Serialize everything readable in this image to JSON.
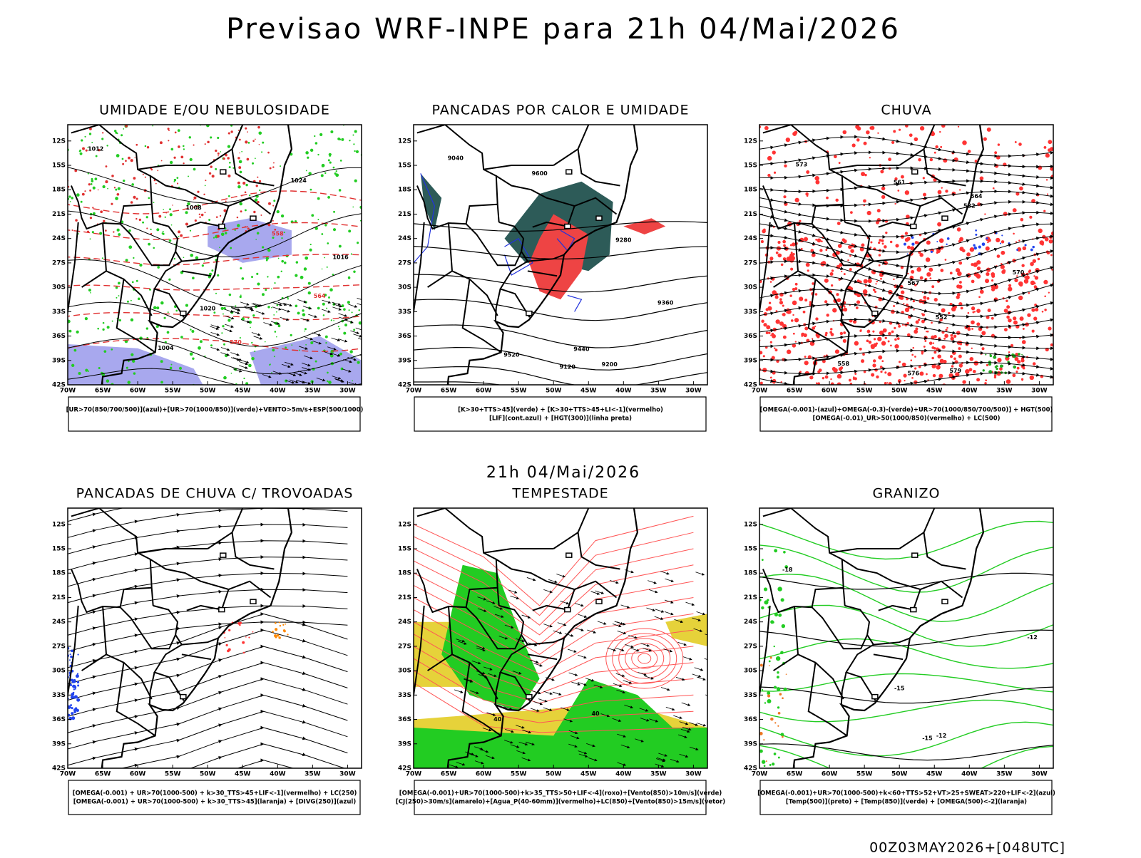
{
  "title": "Previsao WRF-INPE  para 21h 04/Mai/2026",
  "subtitle": "21h 04/Mai/2026",
  "footer": "00Z03MAY2026+[048UTC]",
  "lat_ticks": [
    "12S",
    "15S",
    "18S",
    "21S",
    "24S",
    "27S",
    "30S",
    "33S",
    "36S",
    "39S",
    "42S"
  ],
  "lon_ticks": [
    "70W",
    "65W",
    "60W",
    "55W",
    "50W",
    "45W",
    "40W",
    "35W",
    "30W"
  ],
  "panels": [
    {
      "title": "UMIDADE E/OU NEBULOSIDADE",
      "legend": [
        "[UR>70(850/700/500)](azul)+[UR>70(1000/850)](verde)+VENTO>5m/s+ESP(500/1000)"
      ],
      "contour_labels": [
        "1012",
        "1016",
        "1020",
        "1024",
        "1008",
        "1004",
        "570",
        "564",
        "558"
      ]
    },
    {
      "title": "PANCADAS POR CALOR E UMIDADE",
      "legend": [
        "[K>30+TTS>45](verde) + [K>30+TTS>45+LI<-1](vermelho)",
        "[LIF](cont.azul) + [HGT(300)](linha preta)"
      ],
      "contour_labels": [
        "9600",
        "9520",
        "9440",
        "9360",
        "9280",
        "9200",
        "9120",
        "9040"
      ]
    },
    {
      "title": "CHUVA",
      "legend": [
        "[OMEGA(-0.001)-(azul)+OMEGA(-0.3)-(verde)+UR>70(1000/850/700/500)] + HGT(500)",
        "[OMEGA(-0.01)_UR>50(1000/850)(vermelho) + LC(500)"
      ],
      "contour_labels": [
        "582",
        "579",
        "576",
        "573",
        "570",
        "567",
        "564",
        "561",
        "558",
        "552"
      ]
    },
    {
      "title": "PANCADAS DE CHUVA C/ TROVOADAS",
      "legend": [
        "[OMEGA(-0.001) + UR>70(1000-500) + k>30_TTS>45+LIF<-1](vermelho) + LC(250)",
        "[OMEGA(-0.001) + UR>70(1000-500) + k>30_TTS>45](laranja) + [DIVG(250)](azul)"
      ],
      "contour_labels": []
    },
    {
      "title": "TEMPESTADE",
      "legend": [
        "[OMEGA(-0.001)+UR>70(1000-500)+k>35_TTS>50+LIF<-4](roxo)+[Vento(850)>10m/s](verde)",
        "[CJ(250)>30m/s](amarelo)+[Agua_P(40-60mm)](vermelho)+LC(850)+[Vento(850)>15m/s](vetor)"
      ],
      "contour_labels": [
        "40",
        "40"
      ]
    },
    {
      "title": "GRANIZO",
      "legend": [
        "[OMEGA(-0.001)+UR>70(1000-500)+k<60+TTS>52+VT>25+SWEAT>220+LIF<-2](azul)",
        "[Temp(500)](preto) + [Temp(850)](verde) + [OMEGA(500)<-2](laranja)"
      ],
      "contour_labels": [
        "-12",
        "-15",
        "-18",
        "-12",
        "-15"
      ]
    }
  ]
}
